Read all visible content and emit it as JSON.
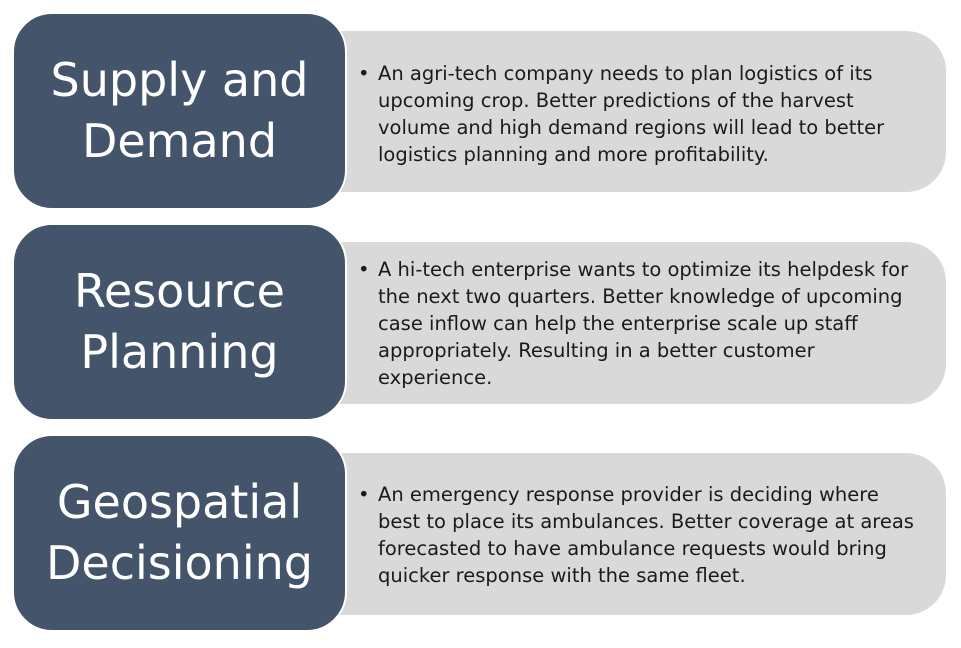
{
  "colors": {
    "title_box": "#44546a",
    "title_text": "#ffffff",
    "desc_box": "#d9d9d9",
    "desc_text": "#1a1a1a"
  },
  "rows": [
    {
      "title": "Supply and\nDemand",
      "bullet": "•",
      "description": "An agri-tech company needs to plan logistics of its upcoming crop. Better predictions of the harvest volume and high demand regions will lead to better logistics planning and more profitability."
    },
    {
      "title": "Resource\nPlanning",
      "bullet": "•",
      "description": "A hi-tech enterprise wants to optimize its helpdesk for the next two quarters. Better knowledge of upcoming case inflow can help the enterprise scale up staff appropriately. Resulting in a better customer experience."
    },
    {
      "title": "Geospatial\nDecisioning",
      "bullet": "•",
      "description": "An emergency response provider is deciding where best to place its ambulances. Better coverage at areas forecasted to have ambulance requests would bring quicker response with the same fleet."
    }
  ]
}
